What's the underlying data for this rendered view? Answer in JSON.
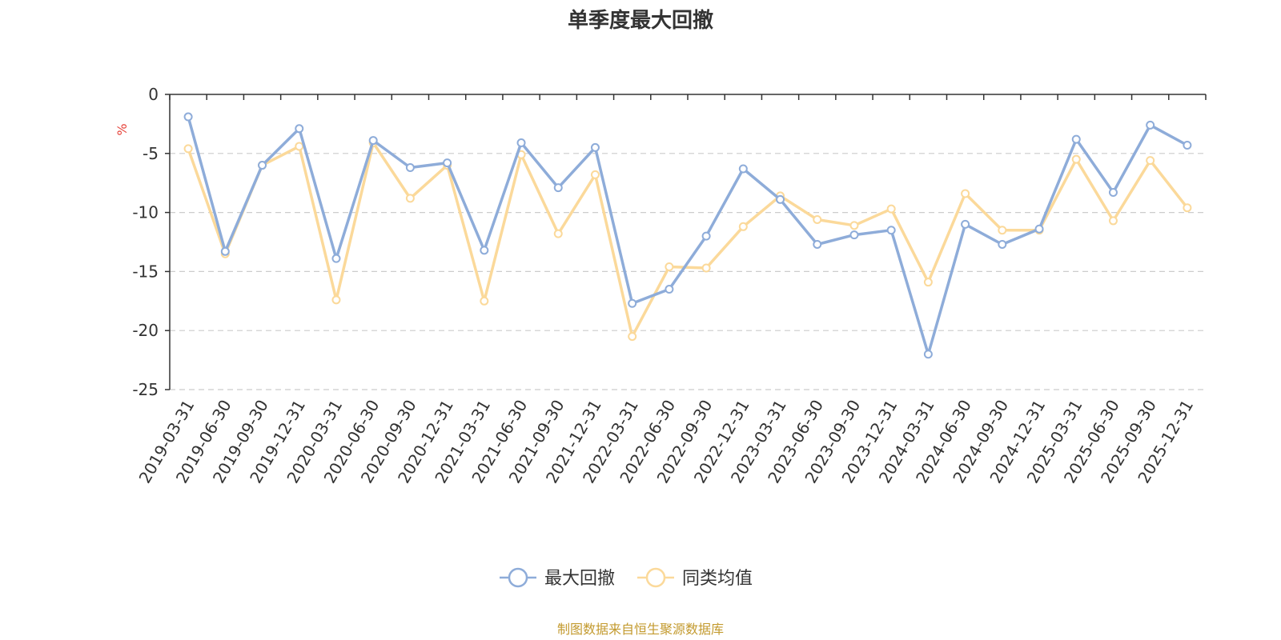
{
  "chart_data": {
    "type": "line",
    "title": "单季度最大回撤",
    "ylabel": "%",
    "xlabel": "",
    "ylim": [
      -25,
      0
    ],
    "yticks": [
      0,
      -5,
      -10,
      -15,
      -20,
      -25
    ],
    "grid": true,
    "legend_position": "bottom-center",
    "categories": [
      "2019-03-31",
      "2019-06-30",
      "2019-09-30",
      "2019-12-31",
      "2020-03-31",
      "2020-06-30",
      "2020-09-30",
      "2020-12-31",
      "2021-03-31",
      "2021-06-30",
      "2021-09-30",
      "2021-12-31",
      "2022-03-31",
      "2022-06-30",
      "2022-09-30",
      "2022-12-31",
      "2023-03-31",
      "2023-06-30",
      "2023-09-30",
      "2023-12-31",
      "2024-03-31",
      "2024-06-30",
      "2024-09-30",
      "2024-12-31",
      "2025-03-31",
      "2025-06-30",
      "2025-09-30",
      "2025-12-31"
    ],
    "series": [
      {
        "name": "最大回撤",
        "color": "#8eacd9",
        "values": [
          -1.9,
          -13.3,
          -6.0,
          -2.9,
          -13.9,
          -3.9,
          -6.2,
          -5.8,
          -13.2,
          -4.1,
          -7.9,
          -4.5,
          -17.7,
          -16.5,
          -12.0,
          -6.3,
          -8.9,
          -12.7,
          -11.9,
          -11.5,
          -22.0,
          -11.0,
          -12.7,
          -11.4,
          -3.8,
          -8.3,
          -2.6,
          -4.3
        ]
      },
      {
        "name": "同类均值",
        "color": "#fbd99a",
        "values": [
          -4.6,
          -13.5,
          -6.0,
          -4.4,
          -17.4,
          -4.1,
          -8.8,
          -6.0,
          -17.5,
          -5.1,
          -11.8,
          -6.8,
          -20.5,
          -14.6,
          -14.7,
          -11.2,
          -8.6,
          -10.6,
          -11.1,
          -9.7,
          -15.9,
          -8.4,
          -11.5,
          -11.5,
          -5.5,
          -10.7,
          -5.6,
          -9.6
        ]
      }
    ]
  },
  "source_text": "制图数据来自恒生聚源数据库",
  "colors": {
    "axis": "#333333",
    "grid": "#cccccc",
    "ylabel": "#e6433a",
    "source": "#c39a2e"
  }
}
